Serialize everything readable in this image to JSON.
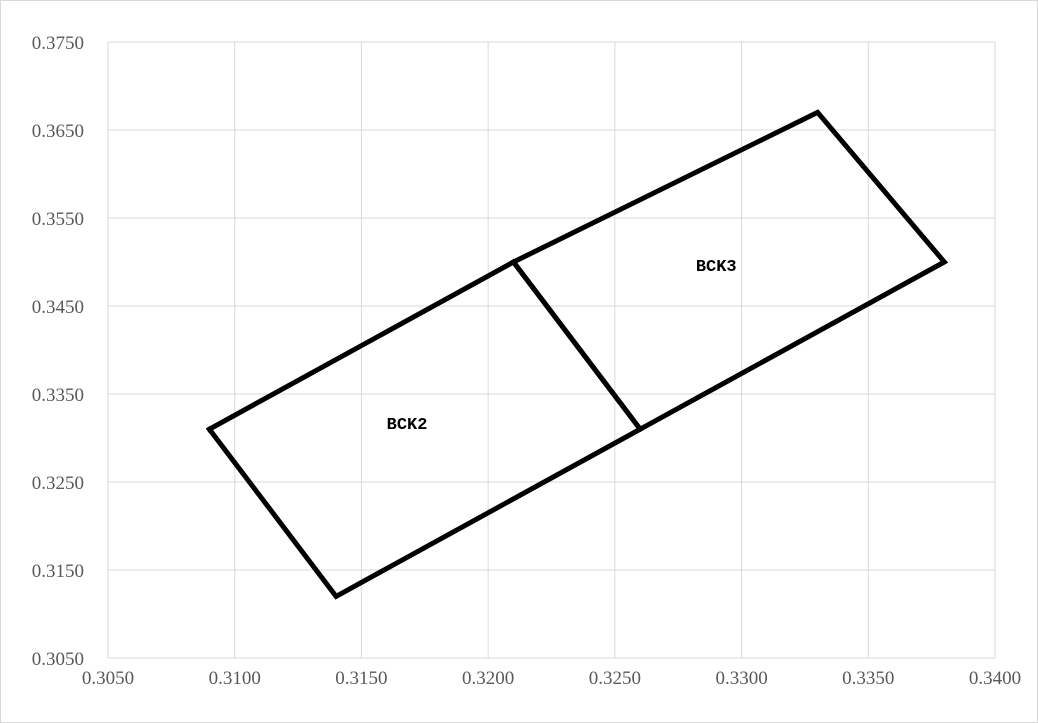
{
  "chart_data": {
    "type": "scatter",
    "title": "",
    "xlabel": "",
    "ylabel": "",
    "xlim": [
      0.305,
      0.34
    ],
    "ylim": [
      0.305,
      0.375
    ],
    "x_ticks": [
      "0.3050",
      "0.3100",
      "0.3150",
      "0.3200",
      "0.3250",
      "0.3300",
      "0.3350",
      "0.3400"
    ],
    "y_ticks": [
      "0.3050",
      "0.3150",
      "0.3250",
      "0.3350",
      "0.3450",
      "0.3550",
      "0.3650",
      "0.3750"
    ],
    "grid": true,
    "legend": "none",
    "series": [
      {
        "points": [
          {
            "x": 0.309,
            "y": 0.331
          },
          {
            "x": 0.321,
            "y": 0.35
          },
          {
            "x": 0.326,
            "y": 0.331
          },
          {
            "x": 0.314,
            "y": 0.312
          },
          {
            "x": 0.309,
            "y": 0.331
          }
        ]
      },
      {
        "points": [
          {
            "x": 0.321,
            "y": 0.35
          },
          {
            "x": 0.333,
            "y": 0.367
          },
          {
            "x": 0.338,
            "y": 0.35
          },
          {
            "x": 0.326,
            "y": 0.331
          },
          {
            "x": 0.321,
            "y": 0.35
          }
        ]
      }
    ],
    "annotations": [
      {
        "text": "BCK2",
        "x": 0.3168,
        "y": 0.331
      },
      {
        "text": "BCK3",
        "x": 0.329,
        "y": 0.349
      }
    ],
    "colors": {
      "line": "#000000",
      "grid": "#d9d9d9",
      "tick_text": "#595959"
    }
  }
}
